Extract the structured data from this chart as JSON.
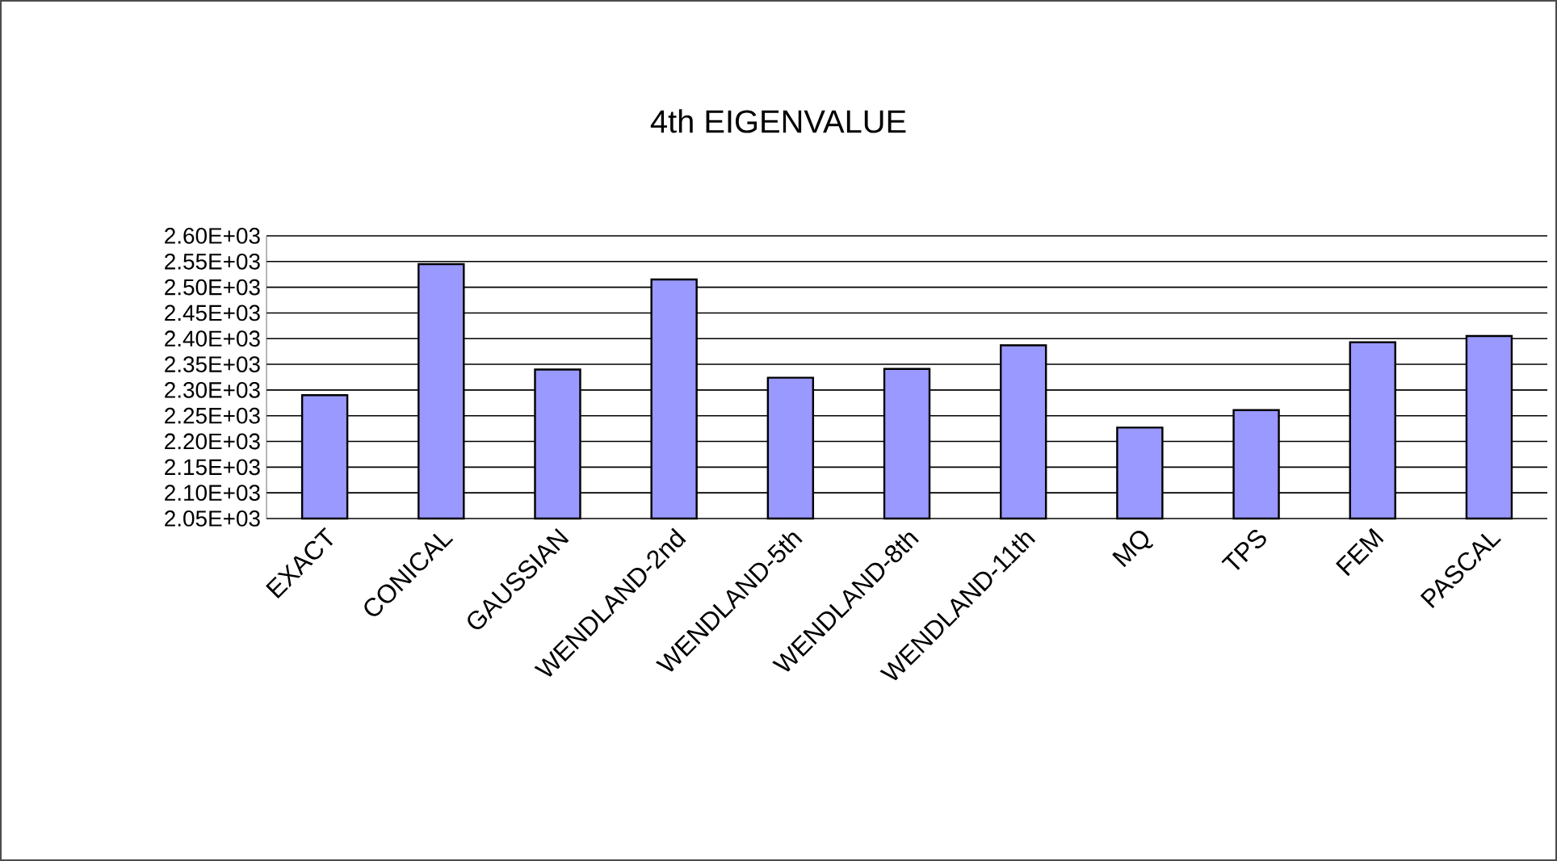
{
  "chart_data": {
    "type": "bar",
    "title": "4th EIGENVALUE",
    "categories": [
      "EXACT",
      "CONICAL",
      "GAUSSIAN",
      "WENDLAND-2nd",
      "WENDLAND-5th",
      "WENDLAND-8th",
      "WENDLAND-11th",
      "MQ",
      "TPS",
      "FEM",
      "PASCAL"
    ],
    "values": [
      2290,
      2545,
      2340,
      2515,
      2324,
      2341,
      2387,
      2227,
      2261,
      2393,
      2405
    ],
    "color": "#9999ff",
    "ylim": [
      2050,
      2600
    ],
    "yticks": [
      {
        "value": 2050,
        "label": "2.05E+03"
      },
      {
        "value": 2100,
        "label": "2.10E+03"
      },
      {
        "value": 2150,
        "label": "2.15E+03"
      },
      {
        "value": 2200,
        "label": "2.20E+03"
      },
      {
        "value": 2250,
        "label": "2.25E+03"
      },
      {
        "value": 2300,
        "label": "2.30E+03"
      },
      {
        "value": 2350,
        "label": "2.35E+03"
      },
      {
        "value": 2400,
        "label": "2.40E+03"
      },
      {
        "value": 2450,
        "label": "2.45E+03"
      },
      {
        "value": 2500,
        "label": "2.50E+03"
      },
      {
        "value": 2550,
        "label": "2.55E+03"
      },
      {
        "value": 2600,
        "label": "2.60E+03"
      }
    ],
    "grid": "y"
  }
}
